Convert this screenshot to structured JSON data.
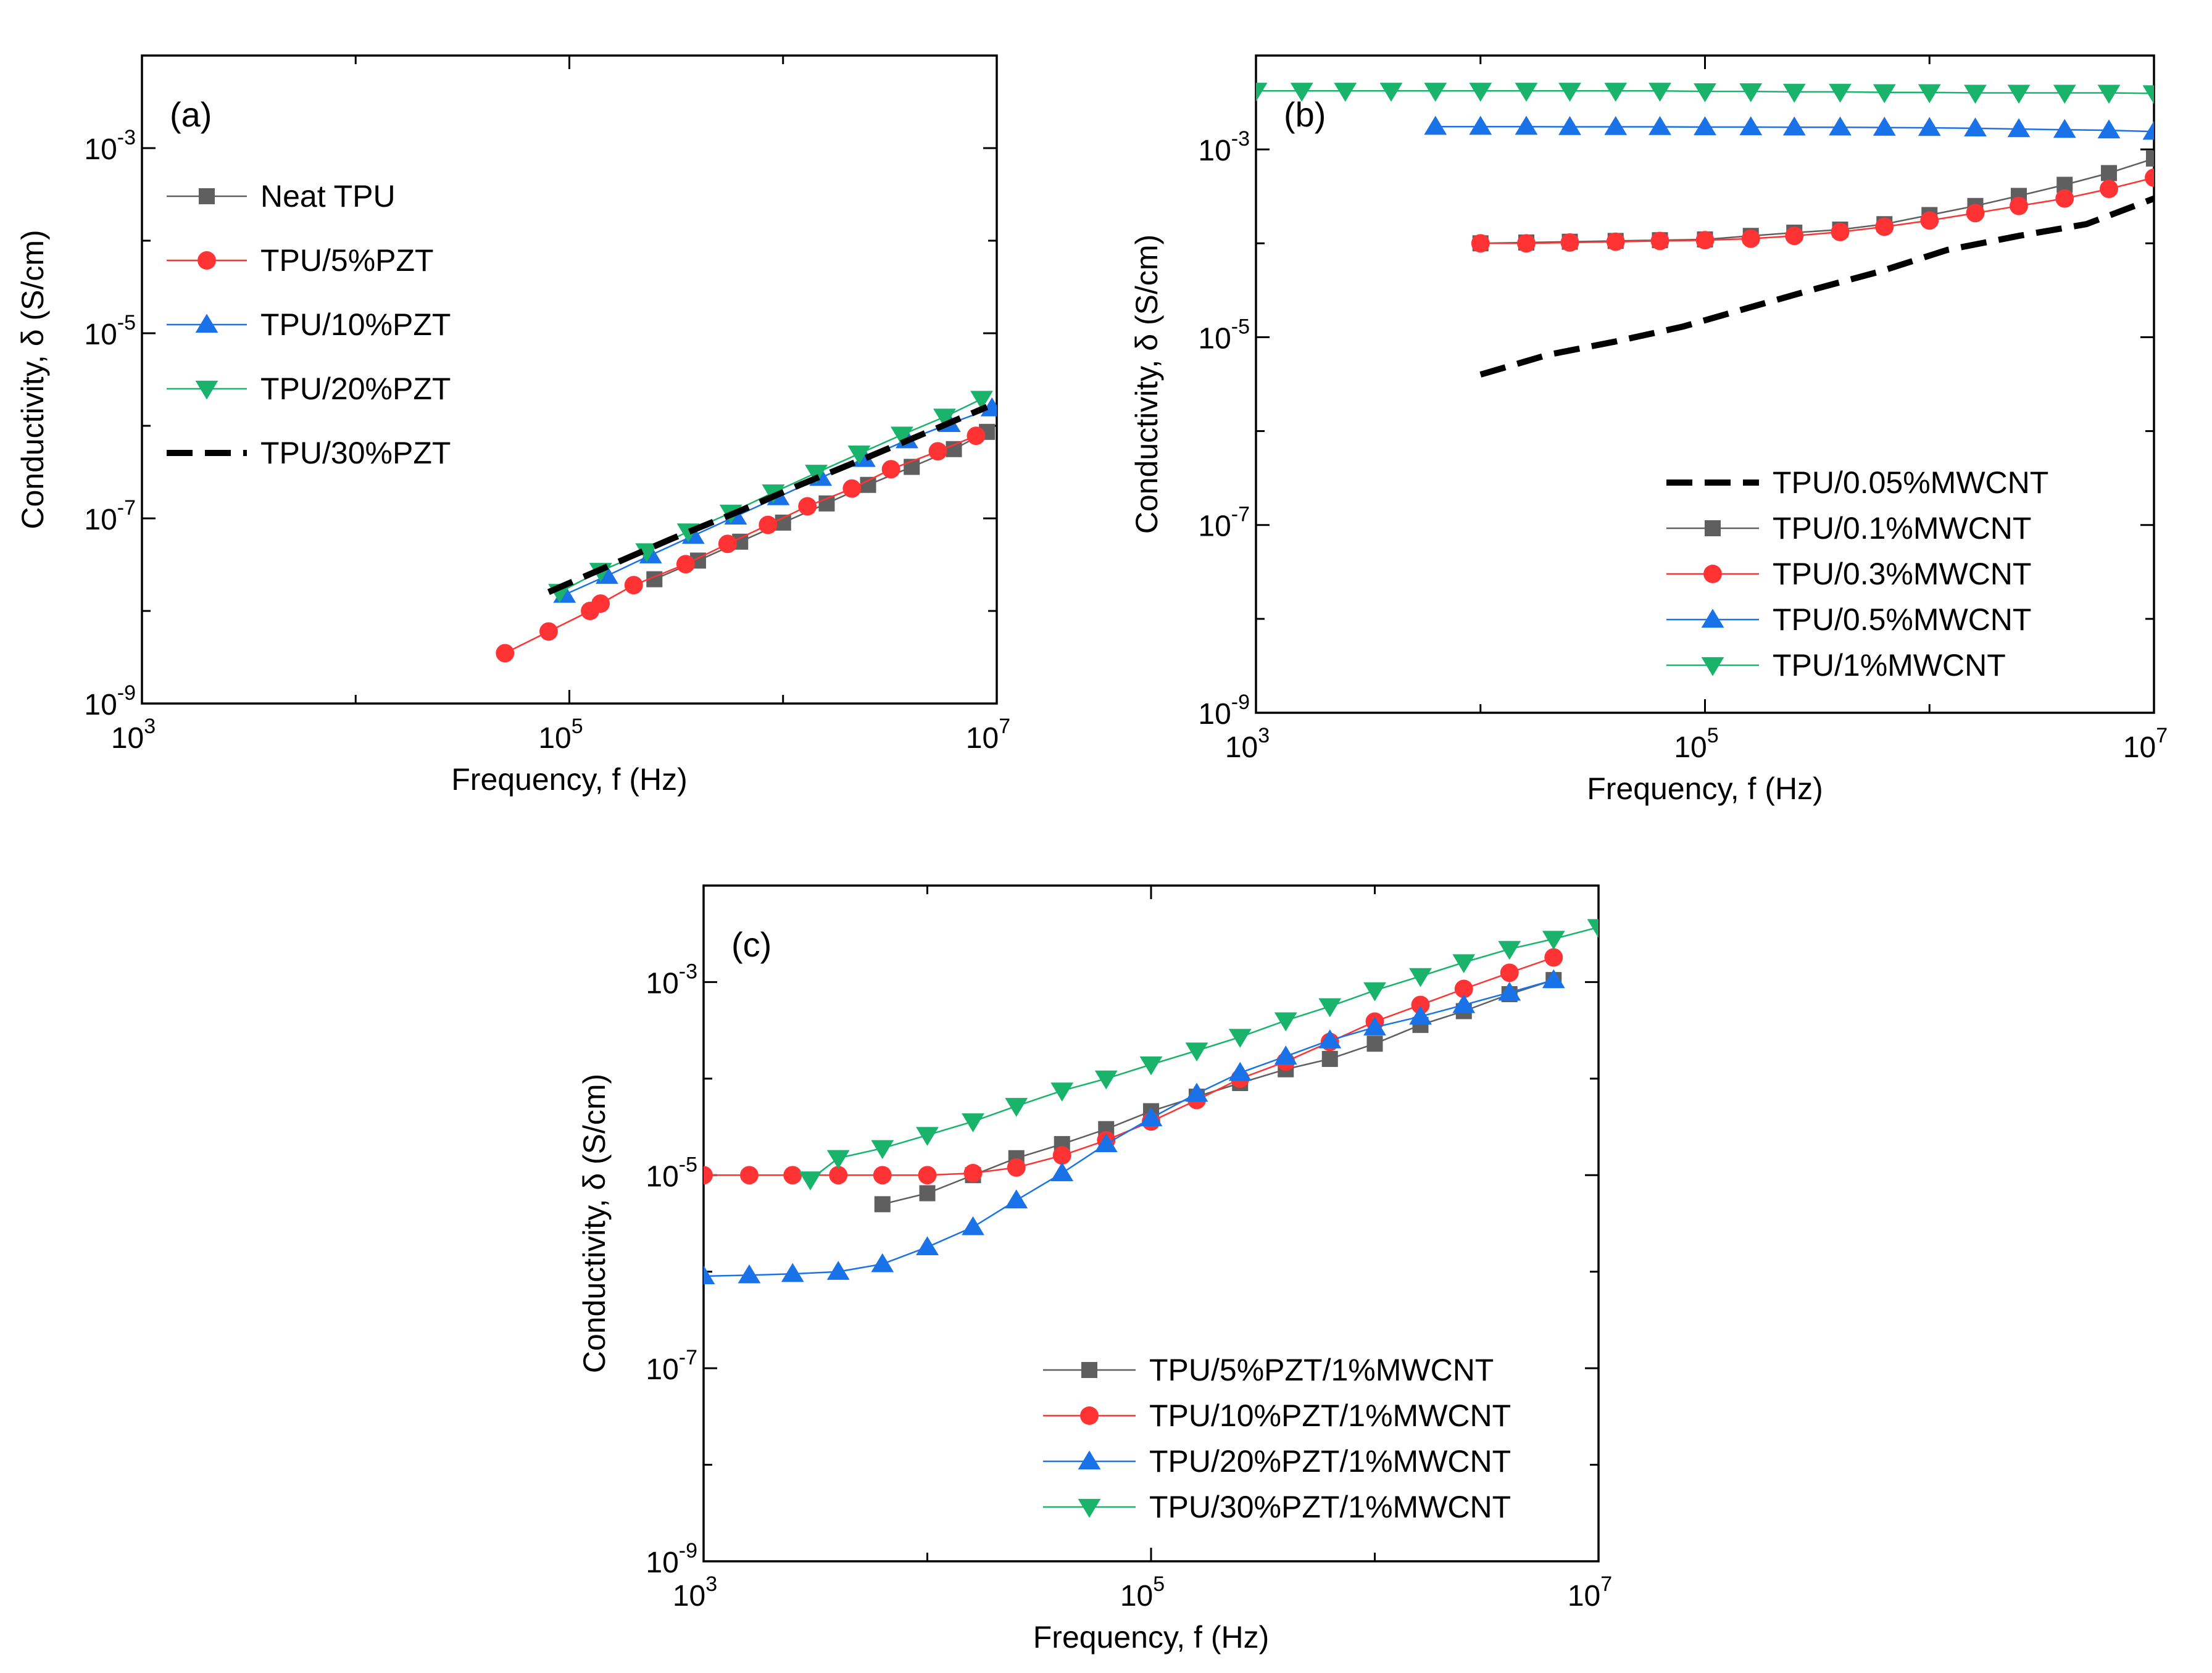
{
  "figure": {
    "description_free": true
  },
  "colors": {
    "gray": "#5f5f5f",
    "red": "#ff3333",
    "blue": "#1a72e8",
    "green": "#19b36b",
    "black": "#000000"
  },
  "chart_data": [
    {
      "id": "a",
      "type": "line",
      "panel_label": "(a)",
      "xlabel": "Frequency, f (Hz)",
      "ylabel": "Conductivity, δ (S/cm)",
      "xscale": "log",
      "yscale": "log",
      "xlim": [
        1000,
        10000000
      ],
      "ylim": [
        1e-09,
        0.01
      ],
      "x_ticks": [
        {
          "base": "10",
          "exp": "3",
          "value": 1000
        },
        {
          "base": "10",
          "exp": "5",
          "value": 100000
        },
        {
          "base": "10",
          "exp": "7",
          "value": 10000000
        }
      ],
      "y_ticks": [
        {
          "base": "10",
          "exp": "-9",
          "value": 1e-09
        },
        {
          "base": "10",
          "exp": "-7",
          "value": 1e-07
        },
        {
          "base": "10",
          "exp": "-5",
          "value": 1e-05
        },
        {
          "base": "10",
          "exp": "-3",
          "value": 0.001
        }
      ],
      "legend_position": "upper-left",
      "series": [
        {
          "name": "Neat TPU",
          "color": "gray",
          "marker": "square",
          "x": [
            250000,
            400000,
            630000,
            1000000,
            1600000,
            2500000,
            4000000,
            6300000,
            9000000
          ],
          "y": [
            2.2e-08,
            3.5e-08,
            5.6e-08,
            9e-08,
            1.45e-07,
            2.3e-07,
            3.6e-07,
            5.6e-07,
            8.6e-07
          ]
        },
        {
          "name": "TPU/5%PZT",
          "color": "red",
          "marker": "circle",
          "x": [
            50000,
            80000,
            125000,
            140000,
            200000,
            350000,
            550000,
            850000,
            1300000,
            2100000,
            3200000,
            5300000,
            8000000
          ],
          "y": [
            3.5e-09,
            6e-09,
            1e-08,
            1.2e-08,
            1.9e-08,
            3.2e-08,
            5.3e-08,
            8.5e-08,
            1.35e-07,
            2.1e-07,
            3.4e-07,
            5.3e-07,
            7.8e-07
          ]
        },
        {
          "name": "TPU/10%PZT",
          "color": "blue",
          "marker": "tri-up",
          "x": [
            95000,
            150000,
            240000,
            380000,
            600000,
            950000,
            1500000,
            2400000,
            3800000,
            6000000,
            9500000
          ],
          "y": [
            1.5e-08,
            2.4e-08,
            4e-08,
            6.5e-08,
            1.05e-07,
            1.7e-07,
            2.75e-07,
            4.4e-07,
            7e-07,
            1.05e-06,
            1.55e-06
          ]
        },
        {
          "name": "TPU/20%PZT",
          "color": "green",
          "marker": "tri-down",
          "x": [
            90000,
            140000,
            230000,
            360000,
            570000,
            900000,
            1430000,
            2270000,
            3600000,
            5700000,
            8500000
          ],
          "y": [
            1.6e-08,
            2.7e-08,
            4.4e-08,
            7.2e-08,
            1.15e-07,
            1.9e-07,
            3.1e-07,
            5e-07,
            8e-07,
            1.25e-06,
            1.95e-06
          ]
        },
        {
          "name": "TPU/30%PZT",
          "color": "black",
          "marker": "none",
          "dashed": true,
          "x": [
            80000,
            150000,
            300000,
            600000,
            1200000,
            2500000,
            5000000,
            9000000
          ],
          "y": [
            1.6e-08,
            3e-08,
            6e-08,
            1.15e-07,
            2.3e-07,
            4.6e-07,
            9e-07,
            1.6e-06
          ]
        }
      ]
    },
    {
      "id": "b",
      "type": "line",
      "panel_label": "(b)",
      "xlabel": "Frequency, f (Hz)",
      "ylabel": "Conductivity, δ (S/cm)",
      "xscale": "log",
      "yscale": "log",
      "xlim": [
        1000,
        10000000
      ],
      "ylim": [
        1e-09,
        0.01
      ],
      "x_ticks": [
        {
          "base": "10",
          "exp": "3",
          "value": 1000
        },
        {
          "base": "10",
          "exp": "5",
          "value": 100000
        },
        {
          "base": "10",
          "exp": "7",
          "value": 10000000
        }
      ],
      "y_ticks": [
        {
          "base": "10",
          "exp": "-9",
          "value": 1e-09
        },
        {
          "base": "10",
          "exp": "-7",
          "value": 1e-07
        },
        {
          "base": "10",
          "exp": "-5",
          "value": 1e-05
        },
        {
          "base": "10",
          "exp": "-3",
          "value": 0.001
        }
      ],
      "legend_position": "lower-right",
      "series": [
        {
          "name": "TPU/0.05%MWCNT",
          "color": "black",
          "marker": "none",
          "dashed": true,
          "x": [
            10000,
            20000,
            40000,
            80000,
            150000,
            300000,
            600000,
            1200000,
            2500000,
            5000000,
            10000000
          ],
          "y": [
            4e-06,
            6.5e-06,
            9e-06,
            1.3e-05,
            2e-05,
            3.2e-05,
            5e-05,
            8.5e-05,
            0.00012,
            0.00016,
            0.0003
          ]
        },
        {
          "name": "TPU/0.1%MWCNT",
          "color": "gray",
          "marker": "square",
          "x": [
            10000,
            16000,
            25000,
            40000,
            63000,
            100000,
            160000,
            250000,
            400000,
            630000,
            1000000,
            1600000,
            2500000,
            4000000,
            6300000,
            10000000
          ],
          "y": [
            0.0001,
            0.000102,
            0.000104,
            0.000106,
            0.000108,
            0.00011,
            0.00012,
            0.00013,
            0.00014,
            0.00016,
            0.0002,
            0.00025,
            0.00032,
            0.00042,
            0.00056,
            0.0008
          ]
        },
        {
          "name": "TPU/0.3%MWCNT",
          "color": "red",
          "marker": "circle",
          "x": [
            10000,
            16000,
            25000,
            40000,
            63000,
            100000,
            160000,
            250000,
            400000,
            630000,
            1000000,
            1600000,
            2500000,
            4000000,
            6300000,
            10000000
          ],
          "y": [
            0.0001,
            0.0001,
            0.000102,
            0.000104,
            0.000106,
            0.000108,
            0.000112,
            0.00012,
            0.000132,
            0.00015,
            0.000175,
            0.00021,
            0.00025,
            0.0003,
            0.00038,
            0.0005
          ]
        },
        {
          "name": "TPU/0.5%MWCNT",
          "color": "blue",
          "marker": "tri-up",
          "x": [
            6300,
            10000,
            16000,
            25000,
            40000,
            63000,
            100000,
            160000,
            250000,
            400000,
            630000,
            1000000,
            1600000,
            2500000,
            4000000,
            6300000,
            10000000
          ],
          "y": [
            0.00175,
            0.00175,
            0.00175,
            0.00174,
            0.00174,
            0.00174,
            0.00173,
            0.00173,
            0.00172,
            0.00172,
            0.00171,
            0.0017,
            0.00168,
            0.00165,
            0.00162,
            0.0016,
            0.00155
          ]
        },
        {
          "name": "TPU/1%MWCNT",
          "color": "green",
          "marker": "tri-down",
          "x": [
            1000,
            1600,
            2500,
            4000,
            6300,
            10000,
            16000,
            25000,
            40000,
            63000,
            100000,
            160000,
            250000,
            400000,
            630000,
            1000000,
            1600000,
            2500000,
            4000000,
            6300000,
            10000000
          ],
          "y": [
            0.0042,
            0.0042,
            0.0042,
            0.0042,
            0.0042,
            0.0042,
            0.0042,
            0.0042,
            0.0042,
            0.0042,
            0.00415,
            0.00415,
            0.0041,
            0.0041,
            0.00405,
            0.00405,
            0.004,
            0.004,
            0.004,
            0.004,
            0.00395
          ]
        }
      ]
    },
    {
      "id": "c",
      "type": "line",
      "panel_label": "(c)",
      "xlabel": "Frequency, f (Hz)",
      "ylabel": "Conductivity, δ (S/cm)",
      "xscale": "log",
      "yscale": "log",
      "xlim": [
        1000,
        10000000
      ],
      "ylim": [
        1e-09,
        0.01
      ],
      "x_ticks": [
        {
          "base": "10",
          "exp": "3",
          "value": 1000
        },
        {
          "base": "10",
          "exp": "5",
          "value": 100000
        },
        {
          "base": "10",
          "exp": "7",
          "value": 10000000
        }
      ],
      "y_ticks": [
        {
          "base": "10",
          "exp": "-9",
          "value": 1e-09
        },
        {
          "base": "10",
          "exp": "-7",
          "value": 1e-07
        },
        {
          "base": "10",
          "exp": "-5",
          "value": 1e-05
        },
        {
          "base": "10",
          "exp": "-3",
          "value": 0.001
        }
      ],
      "legend_position": "lower-right",
      "series": [
        {
          "name": "TPU/5%PZT/1%MWCNT",
          "color": "gray",
          "marker": "square",
          "x": [
            6300,
            10000,
            16000,
            25000,
            40000,
            63000,
            100000,
            160000,
            250000,
            400000,
            630000,
            1000000,
            1600000,
            2500000,
            4000000,
            6300000
          ],
          "y": [
            5e-06,
            6.5e-06,
            1e-05,
            1.5e-05,
            2.1e-05,
            3e-05,
            4.6e-05,
            6.5e-05,
            9e-05,
            0.000125,
            0.00016,
            0.00023,
            0.00036,
            0.0005,
            0.00075,
            0.00105
          ]
        },
        {
          "name": "TPU/10%PZT/1%MWCNT",
          "color": "red",
          "marker": "circle",
          "x": [
            1000,
            1600,
            2500,
            4000,
            6300,
            10000,
            16000,
            25000,
            40000,
            63000,
            100000,
            160000,
            250000,
            400000,
            630000,
            1000000,
            1600000,
            2500000,
            4000000,
            6300000
          ],
          "y": [
            1e-05,
            1e-05,
            1e-05,
            1e-05,
            1e-05,
            1e-05,
            1.05e-05,
            1.2e-05,
            1.6e-05,
            2.3e-05,
            3.6e-05,
            6e-05,
            0.0001,
            0.00015,
            0.00024,
            0.00039,
            0.00058,
            0.00085,
            0.00125,
            0.0018
          ]
        },
        {
          "name": "TPU/20%PZT/1%MWCNT",
          "color": "blue",
          "marker": "tri-up",
          "x": [
            1000,
            1600,
            2500,
            4000,
            6300,
            10000,
            16000,
            25000,
            40000,
            63000,
            100000,
            160000,
            250000,
            400000,
            630000,
            1000000,
            1600000,
            2500000,
            4000000,
            6300000
          ],
          "y": [
            9e-07,
            9.2e-07,
            9.5e-07,
            1e-06,
            1.2e-06,
            1.8e-06,
            2.9e-06,
            5.5e-06,
            1.05e-05,
            2.1e-05,
            3.9e-05,
            7e-05,
            0.000115,
            0.00017,
            0.00025,
            0.00034,
            0.00044,
            0.00058,
            0.00078,
            0.00105
          ]
        },
        {
          "name": "TPU/30%PZT/1%MWCNT",
          "color": "green",
          "marker": "tri-down",
          "x": [
            3000,
            4000,
            6300,
            10000,
            16000,
            25000,
            40000,
            63000,
            100000,
            160000,
            250000,
            400000,
            630000,
            1000000,
            1600000,
            2500000,
            4000000,
            6300000,
            10000000
          ],
          "y": [
            9e-06,
            1.5e-05,
            1.9e-05,
            2.6e-05,
            3.6e-05,
            5.2e-05,
            7.5e-05,
            0.0001,
            0.00014,
            0.000195,
            0.00027,
            0.0004,
            0.00056,
            0.00082,
            0.00115,
            0.0016,
            0.0022,
            0.0028,
            0.0037
          ]
        }
      ]
    }
  ]
}
